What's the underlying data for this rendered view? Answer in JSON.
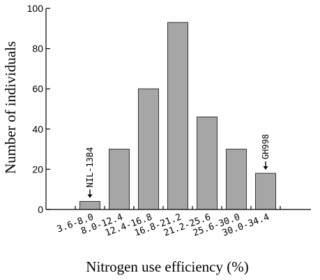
{
  "chart_data": {
    "type": "bar",
    "categories": [
      "3.6-8.0",
      "8.0-12.4",
      "12.4-16.8",
      "16.8-21.2",
      "21.2-25.6",
      "25.6-30.0",
      "30.0-34.4"
    ],
    "values": [
      4,
      30,
      60,
      93,
      46,
      30,
      18
    ],
    "xlabel": "Nitrogen use efficiency (%)",
    "ylabel": "Number of individuals",
    "ylim": [
      0,
      100
    ],
    "yticks": [
      0,
      20,
      40,
      60,
      80,
      100
    ],
    "annotations": [
      {
        "text": "NIL-13B4",
        "category_index": 0
      },
      {
        "text": "GH998",
        "category_index": 6
      }
    ]
  }
}
